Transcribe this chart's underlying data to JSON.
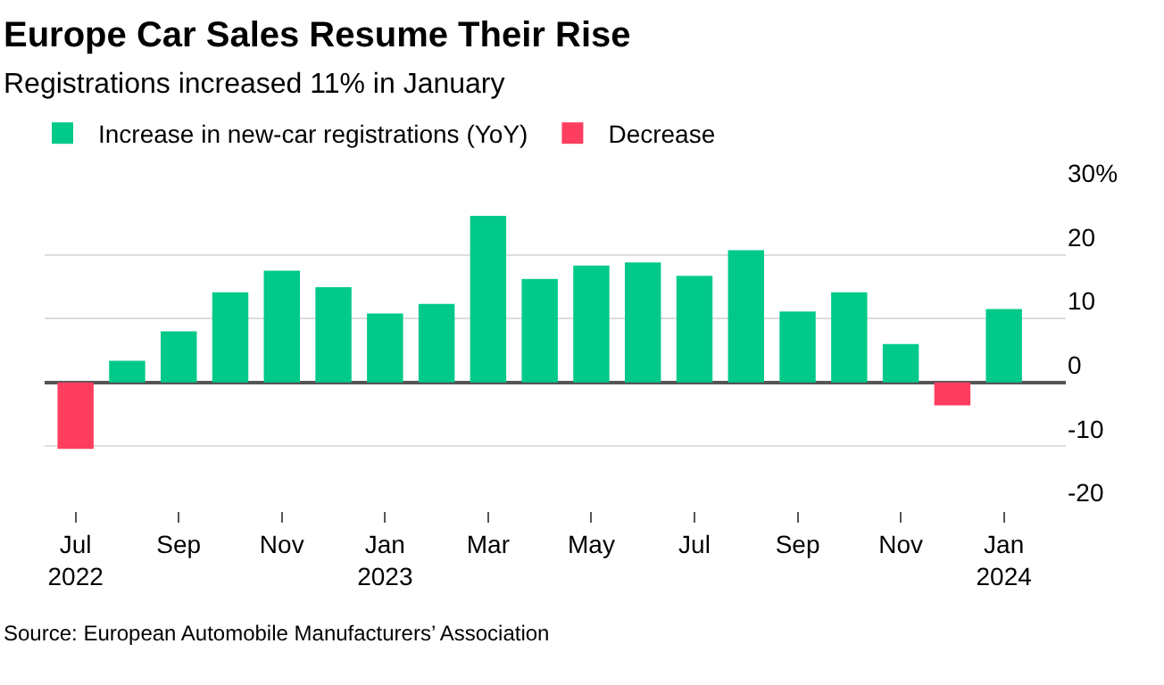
{
  "chart_data": {
    "type": "bar",
    "title": "Europe Car Sales Resume Their Rise",
    "subtitle": "Registrations increased 11% in January",
    "categories": [
      "Jul\n2022",
      null,
      "Sep",
      null,
      "Nov",
      null,
      "Jan\n2023",
      null,
      "Mar",
      null,
      "May",
      null,
      "Jul",
      null,
      "Sep",
      null,
      "Nov",
      null,
      "Jan\n2024"
    ],
    "series": [
      {
        "name": "Increase in new-car registrations (YoY)",
        "color": "#00c98a",
        "values": [
          null,
          3.4,
          8.0,
          14.1,
          17.5,
          14.9,
          10.8,
          12.3,
          26.1,
          16.2,
          18.3,
          18.8,
          16.7,
          20.7,
          11.1,
          14.1,
          6.0,
          null,
          11.5
        ]
      },
      {
        "name": "Decrease",
        "color": "#ff3d5f",
        "values": [
          -10.4,
          null,
          null,
          null,
          null,
          null,
          null,
          null,
          null,
          null,
          null,
          null,
          null,
          null,
          null,
          null,
          null,
          -3.6,
          null
        ]
      }
    ],
    "ylim": [
      -20,
      30
    ],
    "yticks": [
      {
        "value": 30,
        "label": "30%"
      },
      20,
      10,
      0,
      -10,
      -20
    ],
    "grid": "y",
    "legend": "top left",
    "annotations": [
      "Source: European Automobile Manufacturers’ Association"
    ]
  }
}
